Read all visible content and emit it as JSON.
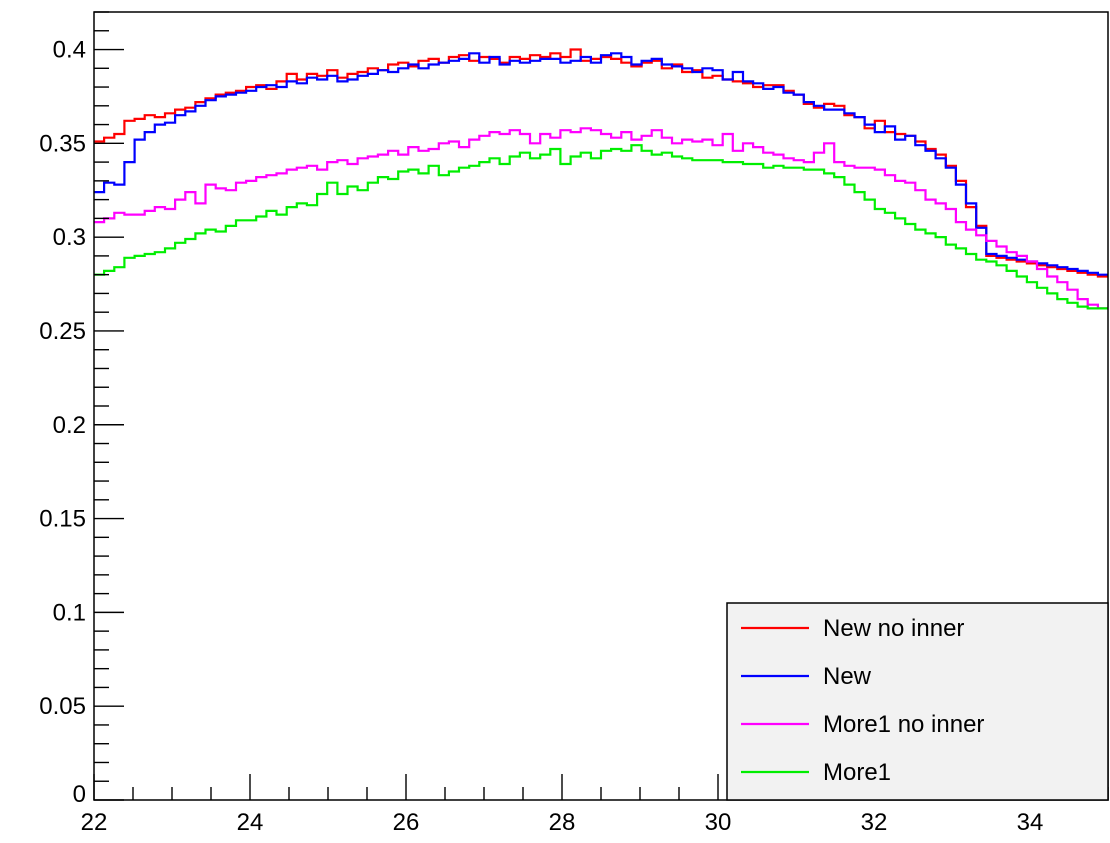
{
  "chart_data": {
    "type": "line",
    "title": "",
    "xlabel": "",
    "ylabel": "",
    "xlim": [
      22,
      35
    ],
    "ylim": [
      0,
      0.42
    ],
    "x_ticks": [
      22,
      24,
      26,
      28,
      30,
      32,
      34
    ],
    "x_tick_labels": [
      "22",
      "24",
      "26",
      "28",
      "30",
      "32",
      "34"
    ],
    "y_ticks": [
      0,
      0.05,
      0.1,
      0.15,
      0.2,
      0.25,
      0.3,
      0.35,
      0.4
    ],
    "y_tick_labels": [
      "0",
      "0.05",
      "0.1",
      "0.15",
      "0.2",
      "0.25",
      "0.3",
      "0.35",
      "0.4"
    ],
    "grid": false,
    "legend_position": "bottom-right",
    "bin_edges_start": 22,
    "bin_width": 0.13,
    "series": [
      {
        "name": "New no inner",
        "color": "#ff0000",
        "values": [
          0.351,
          0.353,
          0.355,
          0.362,
          0.363,
          0.365,
          0.364,
          0.366,
          0.368,
          0.369,
          0.372,
          0.374,
          0.376,
          0.377,
          0.378,
          0.38,
          0.381,
          0.379,
          0.383,
          0.387,
          0.384,
          0.387,
          0.386,
          0.389,
          0.385,
          0.387,
          0.388,
          0.39,
          0.389,
          0.392,
          0.393,
          0.391,
          0.394,
          0.395,
          0.393,
          0.396,
          0.397,
          0.394,
          0.396,
          0.395,
          0.393,
          0.396,
          0.395,
          0.397,
          0.396,
          0.398,
          0.396,
          0.4,
          0.394,
          0.395,
          0.396,
          0.395,
          0.393,
          0.391,
          0.393,
          0.394,
          0.39,
          0.392,
          0.388,
          0.389,
          0.385,
          0.386,
          0.384,
          0.383,
          0.382,
          0.38,
          0.381,
          0.381,
          0.378,
          0.376,
          0.371,
          0.369,
          0.371,
          0.37,
          0.365,
          0.364,
          0.358,
          0.362,
          0.356,
          0.355,
          0.354,
          0.351,
          0.347,
          0.344,
          0.338,
          0.33,
          0.316,
          0.306,
          0.29,
          0.289,
          0.288,
          0.287,
          0.286,
          0.285,
          0.284,
          0.283,
          0.282,
          0.281,
          0.28,
          0.279
        ]
      },
      {
        "name": "New",
        "color": "#0000ff",
        "values": [
          0.324,
          0.329,
          0.328,
          0.34,
          0.352,
          0.356,
          0.36,
          0.361,
          0.365,
          0.367,
          0.37,
          0.373,
          0.375,
          0.376,
          0.377,
          0.378,
          0.38,
          0.381,
          0.38,
          0.383,
          0.382,
          0.385,
          0.384,
          0.386,
          0.383,
          0.384,
          0.386,
          0.387,
          0.389,
          0.388,
          0.39,
          0.392,
          0.39,
          0.392,
          0.393,
          0.394,
          0.395,
          0.398,
          0.393,
          0.396,
          0.392,
          0.394,
          0.393,
          0.394,
          0.395,
          0.395,
          0.393,
          0.394,
          0.396,
          0.393,
          0.397,
          0.398,
          0.396,
          0.392,
          0.394,
          0.395,
          0.392,
          0.391,
          0.39,
          0.388,
          0.39,
          0.389,
          0.384,
          0.388,
          0.383,
          0.382,
          0.379,
          0.38,
          0.377,
          0.376,
          0.372,
          0.37,
          0.368,
          0.368,
          0.366,
          0.364,
          0.36,
          0.356,
          0.359,
          0.352,
          0.354,
          0.349,
          0.346,
          0.342,
          0.337,
          0.328,
          0.318,
          0.305,
          0.291,
          0.29,
          0.289,
          0.288,
          0.287,
          0.286,
          0.285,
          0.284,
          0.283,
          0.282,
          0.281,
          0.28
        ]
      },
      {
        "name": "More1 no inner",
        "color": "#ff00ff",
        "values": [
          0.308,
          0.31,
          0.313,
          0.312,
          0.312,
          0.314,
          0.316,
          0.315,
          0.32,
          0.324,
          0.318,
          0.328,
          0.326,
          0.325,
          0.329,
          0.33,
          0.332,
          0.333,
          0.334,
          0.336,
          0.337,
          0.338,
          0.336,
          0.34,
          0.341,
          0.339,
          0.342,
          0.343,
          0.344,
          0.346,
          0.344,
          0.348,
          0.346,
          0.347,
          0.35,
          0.351,
          0.348,
          0.352,
          0.354,
          0.356,
          0.355,
          0.357,
          0.355,
          0.35,
          0.355,
          0.353,
          0.357,
          0.356,
          0.358,
          0.357,
          0.355,
          0.353,
          0.356,
          0.352,
          0.354,
          0.357,
          0.353,
          0.35,
          0.352,
          0.351,
          0.352,
          0.349,
          0.355,
          0.346,
          0.35,
          0.348,
          0.345,
          0.344,
          0.342,
          0.341,
          0.34,
          0.345,
          0.35,
          0.34,
          0.338,
          0.337,
          0.337,
          0.336,
          0.333,
          0.33,
          0.329,
          0.325,
          0.32,
          0.318,
          0.315,
          0.308,
          0.304,
          0.301,
          0.298,
          0.295,
          0.292,
          0.29,
          0.287,
          0.283,
          0.279,
          0.276,
          0.272,
          0.267,
          0.264,
          0.262
        ]
      },
      {
        "name": "More1",
        "color": "#00ee00",
        "values": [
          0.28,
          0.282,
          0.284,
          0.289,
          0.29,
          0.291,
          0.292,
          0.294,
          0.297,
          0.299,
          0.302,
          0.304,
          0.303,
          0.306,
          0.309,
          0.309,
          0.311,
          0.314,
          0.312,
          0.316,
          0.318,
          0.317,
          0.323,
          0.329,
          0.323,
          0.327,
          0.325,
          0.329,
          0.332,
          0.331,
          0.335,
          0.336,
          0.334,
          0.338,
          0.333,
          0.335,
          0.337,
          0.338,
          0.34,
          0.342,
          0.339,
          0.343,
          0.345,
          0.342,
          0.344,
          0.347,
          0.339,
          0.343,
          0.345,
          0.342,
          0.346,
          0.347,
          0.346,
          0.349,
          0.346,
          0.344,
          0.345,
          0.343,
          0.342,
          0.341,
          0.341,
          0.341,
          0.34,
          0.34,
          0.339,
          0.339,
          0.337,
          0.338,
          0.337,
          0.337,
          0.336,
          0.336,
          0.334,
          0.332,
          0.328,
          0.324,
          0.32,
          0.315,
          0.313,
          0.31,
          0.307,
          0.304,
          0.302,
          0.3,
          0.296,
          0.294,
          0.291,
          0.288,
          0.287,
          0.285,
          0.282,
          0.279,
          0.276,
          0.273,
          0.27,
          0.267,
          0.265,
          0.263,
          0.262,
          0.262
        ]
      }
    ]
  }
}
